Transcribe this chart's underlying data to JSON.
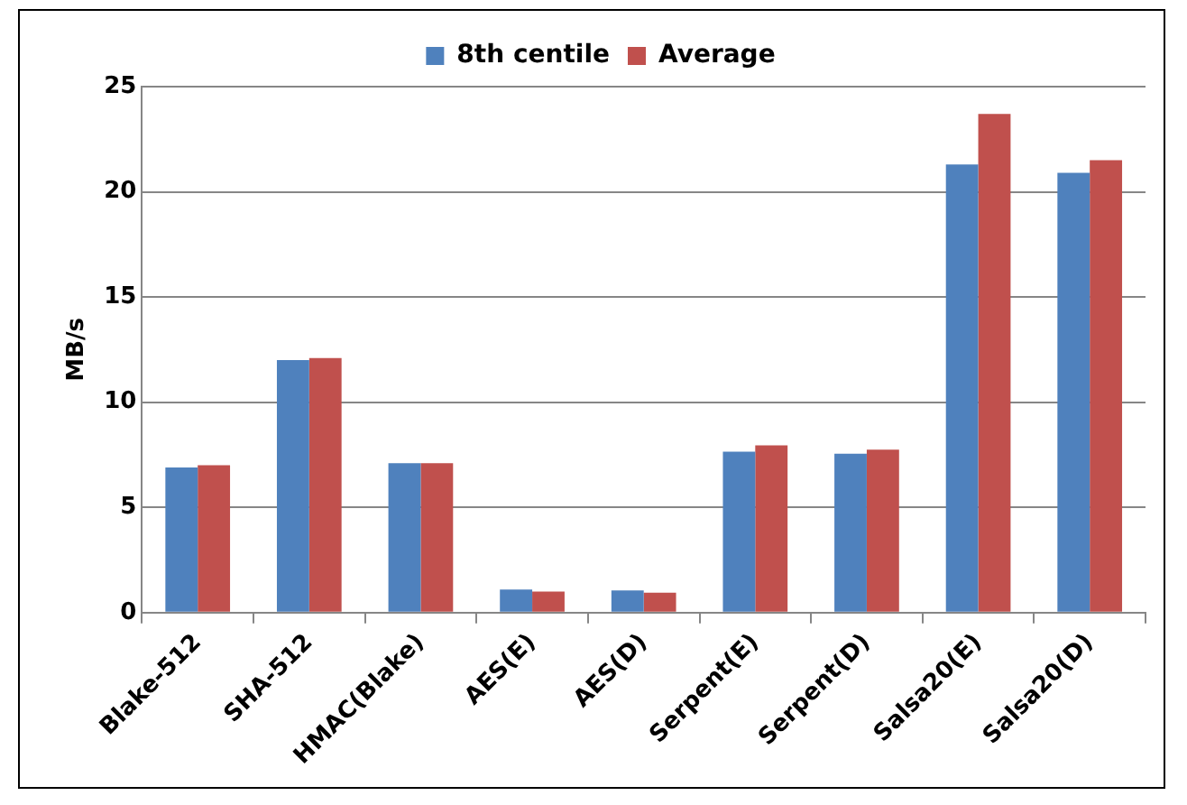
{
  "chart_data": {
    "type": "bar",
    "ylabel": "MB/s",
    "categories": [
      "Blake-512",
      "SHA-512",
      "HMAC(Blake)",
      "AES(E)",
      "AES(D)",
      "Serpent(E)",
      "Serpent(D)",
      "Salsa20(E)",
      "Salsa20(D)"
    ],
    "series": [
      {
        "name": "8th centile",
        "color": "#4f81bd",
        "values": [
          6.9,
          12.0,
          7.1,
          1.1,
          1.05,
          7.65,
          7.55,
          21.3,
          20.9
        ]
      },
      {
        "name": "Average",
        "color": "#c0504d",
        "values": [
          7.0,
          12.1,
          7.1,
          1.0,
          0.95,
          7.95,
          7.75,
          23.7,
          21.5
        ]
      }
    ],
    "ylim": [
      0,
      25
    ],
    "yticks": [
      0,
      5,
      10,
      15,
      20,
      25
    ],
    "grid": "y",
    "legend": "top"
  }
}
